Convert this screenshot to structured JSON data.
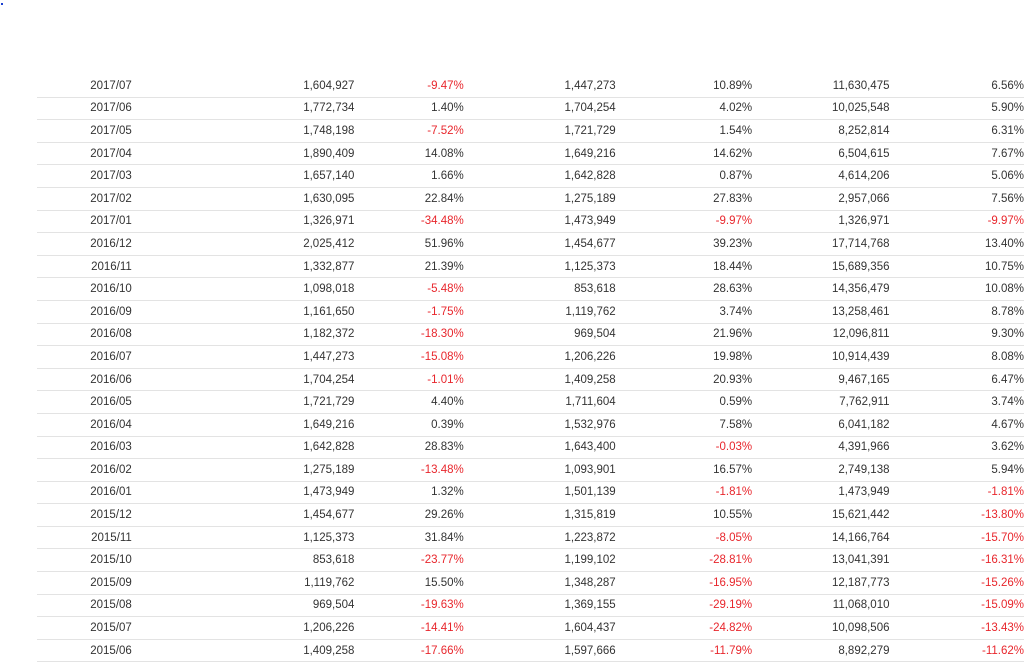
{
  "colors": {
    "negative": "#e8262c",
    "text": "#333333",
    "border": "#e3e3e3"
  },
  "rows": [
    [
      "2017/07",
      "1,604,927",
      "-9.47%",
      "1,447,273",
      "10.89%",
      "11,630,475",
      "6.56%"
    ],
    [
      "2017/06",
      "1,772,734",
      "1.40%",
      "1,704,254",
      "4.02%",
      "10,025,548",
      "5.90%"
    ],
    [
      "2017/05",
      "1,748,198",
      "-7.52%",
      "1,721,729",
      "1.54%",
      "8,252,814",
      "6.31%"
    ],
    [
      "2017/04",
      "1,890,409",
      "14.08%",
      "1,649,216",
      "14.62%",
      "6,504,615",
      "7.67%"
    ],
    [
      "2017/03",
      "1,657,140",
      "1.66%",
      "1,642,828",
      "0.87%",
      "4,614,206",
      "5.06%"
    ],
    [
      "2017/02",
      "1,630,095",
      "22.84%",
      "1,275,189",
      "27.83%",
      "2,957,066",
      "7.56%"
    ],
    [
      "2017/01",
      "1,326,971",
      "-34.48%",
      "1,473,949",
      "-9.97%",
      "1,326,971",
      "-9.97%"
    ],
    [
      "2016/12",
      "2,025,412",
      "51.96%",
      "1,454,677",
      "39.23%",
      "17,714,768",
      "13.40%"
    ],
    [
      "2016/11",
      "1,332,877",
      "21.39%",
      "1,125,373",
      "18.44%",
      "15,689,356",
      "10.75%"
    ],
    [
      "2016/10",
      "1,098,018",
      "-5.48%",
      "853,618",
      "28.63%",
      "14,356,479",
      "10.08%"
    ],
    [
      "2016/09",
      "1,161,650",
      "-1.75%",
      "1,119,762",
      "3.74%",
      "13,258,461",
      "8.78%"
    ],
    [
      "2016/08",
      "1,182,372",
      "-18.30%",
      "969,504",
      "21.96%",
      "12,096,811",
      "9.30%"
    ],
    [
      "2016/07",
      "1,447,273",
      "-15.08%",
      "1,206,226",
      "19.98%",
      "10,914,439",
      "8.08%"
    ],
    [
      "2016/06",
      "1,704,254",
      "-1.01%",
      "1,409,258",
      "20.93%",
      "9,467,165",
      "6.47%"
    ],
    [
      "2016/05",
      "1,721,729",
      "4.40%",
      "1,711,604",
      "0.59%",
      "7,762,911",
      "3.74%"
    ],
    [
      "2016/04",
      "1,649,216",
      "0.39%",
      "1,532,976",
      "7.58%",
      "6,041,182",
      "4.67%"
    ],
    [
      "2016/03",
      "1,642,828",
      "28.83%",
      "1,643,400",
      "-0.03%",
      "4,391,966",
      "3.62%"
    ],
    [
      "2016/02",
      "1,275,189",
      "-13.48%",
      "1,093,901",
      "16.57%",
      "2,749,138",
      "5.94%"
    ],
    [
      "2016/01",
      "1,473,949",
      "1.32%",
      "1,501,139",
      "-1.81%",
      "1,473,949",
      "-1.81%"
    ],
    [
      "2015/12",
      "1,454,677",
      "29.26%",
      "1,315,819",
      "10.55%",
      "15,621,442",
      "-13.80%"
    ],
    [
      "2015/11",
      "1,125,373",
      "31.84%",
      "1,223,872",
      "-8.05%",
      "14,166,764",
      "-15.70%"
    ],
    [
      "2015/10",
      "853,618",
      "-23.77%",
      "1,199,102",
      "-28.81%",
      "13,041,391",
      "-16.31%"
    ],
    [
      "2015/09",
      "1,119,762",
      "15.50%",
      "1,348,287",
      "-16.95%",
      "12,187,773",
      "-15.26%"
    ],
    [
      "2015/08",
      "969,504",
      "-19.63%",
      "1,369,155",
      "-29.19%",
      "11,068,010",
      "-15.09%"
    ],
    [
      "2015/07",
      "1,206,226",
      "-14.41%",
      "1,604,437",
      "-24.82%",
      "10,098,506",
      "-13.43%"
    ],
    [
      "2015/06",
      "1,409,258",
      "-17.66%",
      "1,597,666",
      "-11.79%",
      "8,892,279",
      "-11.62%"
    ]
  ]
}
